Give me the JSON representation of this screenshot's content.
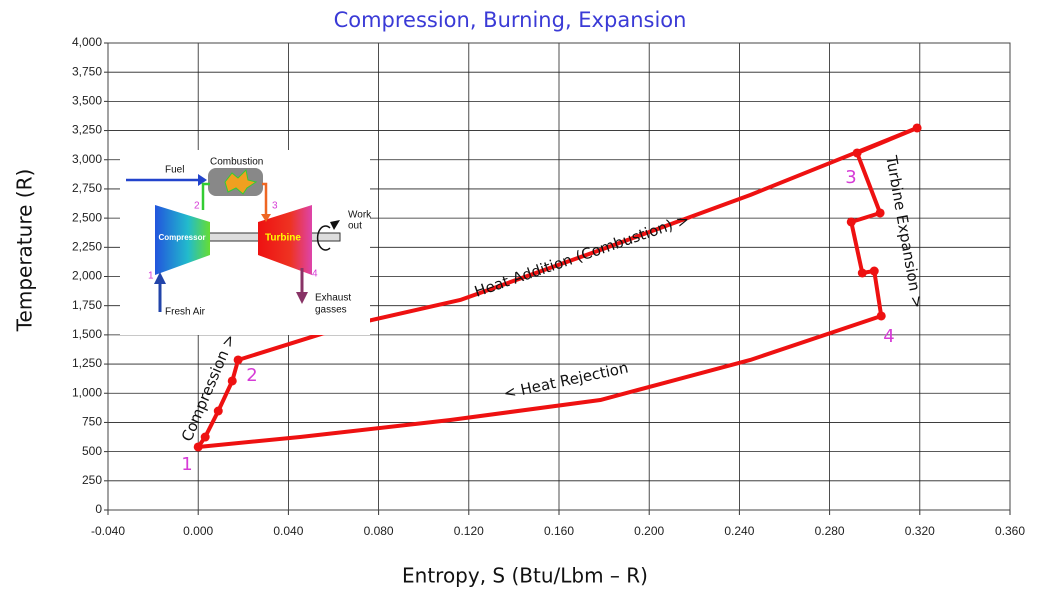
{
  "chart_data": {
    "type": "line",
    "title": "Compression, Burning, Expansion",
    "x_label": "Entropy, S (Btu/Lbm – R)",
    "y_label": "Temperature (R)",
    "xlim": [
      -0.04,
      0.36
    ],
    "ylim": [
      0,
      4000
    ],
    "xticks": [
      {
        "value": -0.04,
        "label": "-0.040"
      },
      {
        "value": 0,
        "label": "0.000"
      },
      {
        "value": 0.04,
        "label": "0.040"
      },
      {
        "value": 0.08,
        "label": "0.080"
      },
      {
        "value": 0.12,
        "label": "0.120"
      },
      {
        "value": 0.16,
        "label": "0.160"
      },
      {
        "value": 0.2,
        "label": "0.200"
      },
      {
        "value": 0.24,
        "label": "0.240"
      },
      {
        "value": 0.28,
        "label": "0.280"
      },
      {
        "value": 0.32,
        "label": "0.320"
      },
      {
        "value": 0.36,
        "label": "0.360"
      }
    ],
    "yticks": [
      0,
      250,
      500,
      750,
      {
        "value": 1000,
        "label": "1,000"
      },
      {
        "value": 1250,
        "label": "1,250"
      },
      {
        "value": 1500,
        "label": "1,500"
      },
      {
        "value": 1750,
        "label": "1,750"
      },
      {
        "value": 2000,
        "label": "2,000"
      },
      {
        "value": 2250,
        "label": "2,250"
      },
      {
        "value": 2500,
        "label": "2,500"
      },
      {
        "value": 2750,
        "label": "2,750"
      },
      {
        "value": 3000,
        "label": "3,000"
      },
      {
        "value": 3250,
        "label": "3,250"
      },
      {
        "value": 3500,
        "label": "3,500"
      },
      {
        "value": 3750,
        "label": "3,750"
      },
      {
        "value": 4000,
        "label": "4,000"
      }
    ],
    "grid": true,
    "series": [
      {
        "color": "#ee1111",
        "markers": true,
        "x": [
          0,
          0.0031,
          0.0089,
          0.0151,
          0.0177
        ],
        "values": [
          540,
          625,
          848,
          1105,
          1285
        ]
      },
      {
        "color": "#ee1111",
        "markers": false,
        "x": [
          0.0177,
          0.0674,
          0.1162,
          0.1783,
          0.2448,
          0.3188
        ],
        "values": [
          1285,
          1585,
          1799,
          2227,
          2698,
          3272
        ]
      },
      {
        "color": "#ee1111",
        "markers": true,
        "x": [
          0.3188,
          0.2922,
          0.3024,
          0.2896,
          0.2945,
          0.2998,
          0.3029
        ],
        "values": [
          3272,
          3058,
          2544,
          2467,
          2030,
          2047,
          1662
        ]
      },
      {
        "color": "#ee1111",
        "markers": false,
        "x": [
          0.3029,
          0.2448,
          0.1783,
          0.1118,
          0.0452,
          0
        ],
        "values": [
          1662,
          1285,
          942,
          771,
          625,
          540
        ]
      }
    ],
    "annotations": [
      "Heat Addition (Combustion) >",
      "< Heat Rejection",
      "Compression >",
      "Turbine Expansion >",
      "1",
      "2",
      "3",
      "4"
    ]
  },
  "inset": {
    "labels": [
      "Fuel",
      "Combustion",
      "Compressor",
      "Turbine",
      "Work",
      "out",
      "Fresh Air",
      "Exhaust",
      "gasses"
    ],
    "stations": [
      "1",
      "2",
      "3",
      "4"
    ]
  }
}
